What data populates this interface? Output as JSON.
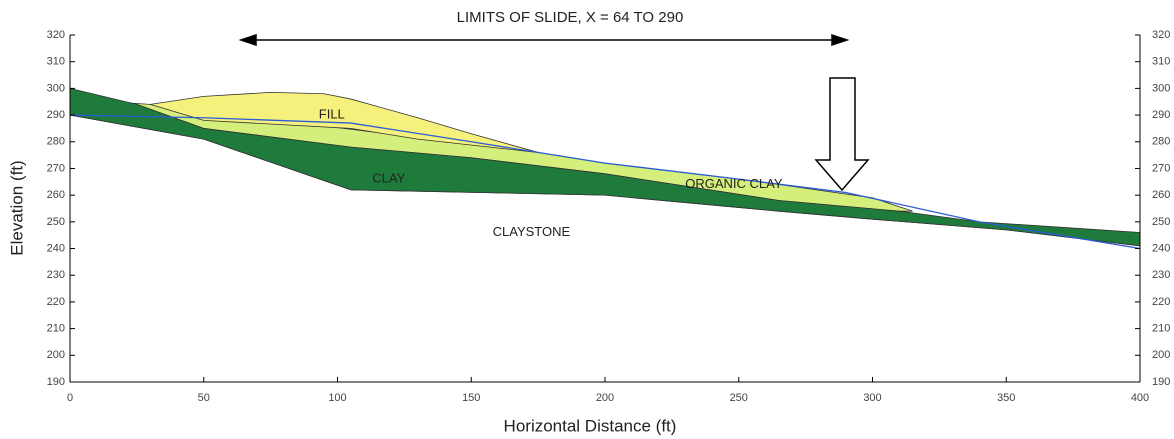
{
  "chart_data": {
    "type": "cross-section",
    "title": "LIMITS OF SLIDE, X = 64 TO 290",
    "xlabel": "Horizontal Distance (ft)",
    "ylabel": "Elevation (ft)",
    "xlim": [
      0,
      400
    ],
    "ylim": [
      190,
      320
    ],
    "xticks": [
      0,
      50,
      100,
      150,
      200,
      250,
      300,
      350,
      400
    ],
    "yticks": [
      190,
      200,
      210,
      220,
      230,
      240,
      250,
      260,
      270,
      280,
      290,
      300,
      310,
      320
    ],
    "layers": [
      {
        "name": "CLAYSTONE",
        "color": "#ffffff",
        "x": [
          0,
          50,
          105,
          200,
          265,
          300,
          350,
          400,
          400,
          0
        ],
        "y": [
          290,
          281,
          262,
          260,
          254,
          251,
          247,
          241,
          190,
          190
        ]
      },
      {
        "name": "ORGANIC CLAY",
        "color": "#d4ef7c",
        "x": [
          15,
          30,
          175,
          200,
          250,
          265,
          300,
          315,
          310,
          265,
          200,
          150,
          105,
          50,
          25
        ],
        "y": [
          295,
          294,
          276,
          272,
          266,
          264,
          259,
          254,
          254,
          258,
          268,
          274,
          278,
          285,
          294
        ]
      },
      {
        "name": "FILL",
        "color": "#f6f07c",
        "x": [
          30,
          50,
          75,
          95,
          105,
          130,
          150,
          175,
          130,
          105,
          50
        ],
        "y": [
          294,
          297,
          298.5,
          298,
          296,
          289,
          283,
          276,
          281,
          285,
          288
        ]
      },
      {
        "name": "CLAY",
        "color": "#1e7b3c",
        "x": [
          0,
          25,
          50,
          105,
          150,
          200,
          265,
          310,
          340,
          370,
          400,
          400,
          350,
          300,
          265,
          200,
          105,
          50,
          0
        ],
        "y": [
          300,
          294,
          285,
          278,
          274,
          268,
          258,
          254,
          250,
          248,
          246,
          241,
          247,
          251,
          254,
          260,
          262,
          281,
          290
        ]
      }
    ],
    "water_table": {
      "color": "#2c5bd6",
      "x": [
        0,
        50,
        105,
        150,
        200,
        250,
        290,
        340,
        400
      ],
      "y": [
        290,
        289,
        287,
        280,
        272,
        266,
        261,
        250,
        240
      ]
    }
  }
}
